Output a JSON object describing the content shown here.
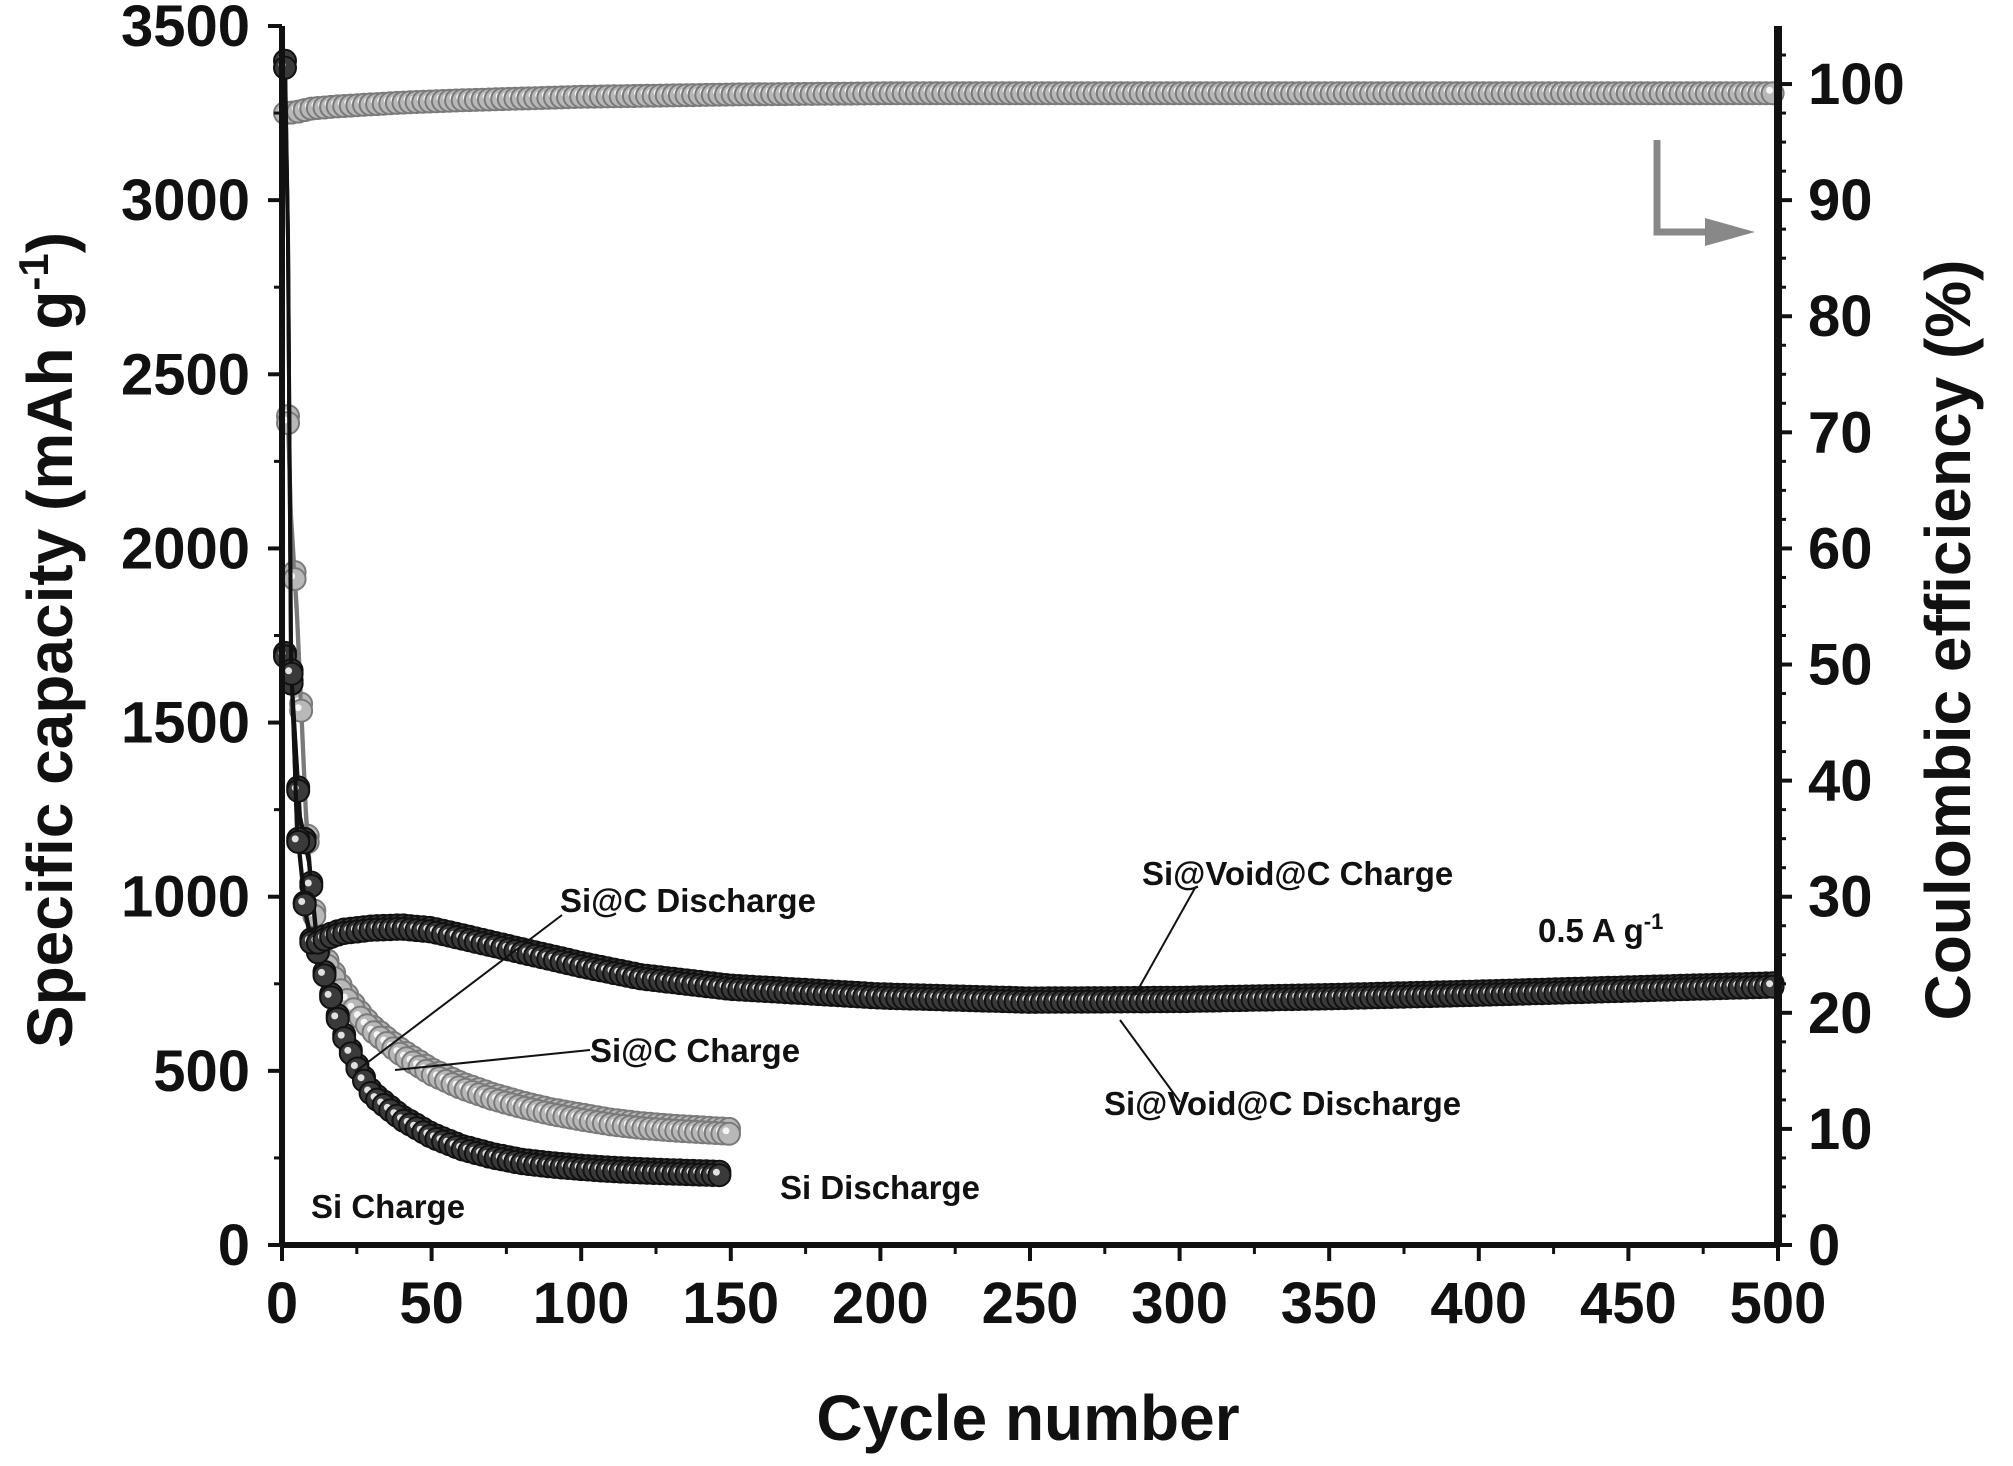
{
  "chart_data": {
    "type": "scatter",
    "xlabel": "Cycle number",
    "ylabel": "Specific capacity (mAh g",
    "ylabel_sup": "-1",
    "ylabel_close": ")",
    "y2label": "Coulombic efficiency (%)",
    "xlim": [
      0,
      500
    ],
    "ylim": [
      0,
      3500
    ],
    "y2lim": [
      0,
      105
    ],
    "x_ticks": [
      "0",
      "50",
      "100",
      "150",
      "200",
      "250",
      "300",
      "350",
      "400",
      "450",
      "500"
    ],
    "y_ticks": [
      "0",
      "500",
      "1000",
      "1500",
      "2000",
      "2500",
      "3000",
      "3500"
    ],
    "y2_ticks": [
      "0",
      "10",
      "20",
      "30",
      "40",
      "50",
      "60",
      "70",
      "80",
      "90",
      "100"
    ],
    "grid": false,
    "series": [
      {
        "name": "Si@Void@C Charge",
        "axis": "left",
        "style": "dark",
        "x": [
          1,
          2,
          3,
          5,
          8,
          10,
          15,
          20,
          30,
          40,
          50,
          60,
          80,
          100,
          120,
          150,
          200,
          250,
          300,
          350,
          400,
          450,
          500
        ],
        "y": [
          3400,
          2900,
          1700,
          1200,
          950,
          870,
          890,
          905,
          915,
          918,
          910,
          890,
          850,
          810,
          775,
          745,
          720,
          708,
          710,
          718,
          728,
          740,
          752
        ]
      },
      {
        "name": "Si@Void@C Discharge",
        "axis": "left",
        "style": "dark",
        "x": [
          1,
          2,
          3,
          5,
          8,
          10,
          15,
          20,
          30,
          40,
          50,
          60,
          80,
          100,
          120,
          150,
          200,
          250,
          300,
          350,
          400,
          450,
          500
        ],
        "y": [
          3380,
          2880,
          1690,
          1190,
          945,
          860,
          880,
          895,
          905,
          908,
          900,
          880,
          840,
          800,
          765,
          735,
          710,
          698,
          700,
          708,
          718,
          730,
          742
        ]
      },
      {
        "name": "Si@C Charge",
        "axis": "left",
        "style": "light",
        "x": [
          2,
          3,
          5,
          8,
          10,
          12,
          15,
          20,
          25,
          30,
          40,
          50,
          60,
          70,
          80,
          90,
          100,
          110,
          120,
          130,
          140,
          150
        ],
        "y": [
          2380,
          2100,
          1820,
          1250,
          1000,
          900,
          820,
          740,
          680,
          630,
          560,
          505,
          465,
          435,
          410,
          390,
          375,
          360,
          350,
          343,
          338,
          333
        ]
      },
      {
        "name": "Si@C Discharge",
        "axis": "left",
        "style": "light",
        "x": [
          2,
          3,
          5,
          8,
          10,
          12,
          15,
          20,
          25,
          30,
          40,
          50,
          60,
          70,
          80,
          90,
          100,
          110,
          120,
          130,
          140,
          150
        ],
        "y": [
          2360,
          2080,
          1800,
          1230,
          985,
          885,
          805,
          725,
          665,
          615,
          545,
          490,
          450,
          420,
          396,
          376,
          360,
          346,
          336,
          329,
          324,
          319
        ]
      },
      {
        "name": "Si Charge",
        "axis": "left",
        "style": "dark",
        "x": [
          1,
          3,
          6,
          9,
          12,
          15,
          20,
          25,
          30,
          40,
          50,
          60,
          70,
          80,
          90,
          100,
          110,
          120,
          130,
          140,
          148
        ],
        "y": [
          1700,
          1650,
          1230,
          1110,
          850,
          760,
          620,
          520,
          440,
          370,
          320,
          285,
          262,
          245,
          235,
          228,
          222,
          218,
          215,
          212,
          210
        ]
      },
      {
        "name": "Si Discharge",
        "axis": "left",
        "style": "dark",
        "x": [
          1,
          3,
          6,
          9,
          12,
          15,
          20,
          25,
          30,
          40,
          50,
          60,
          70,
          80,
          90,
          100,
          110,
          120,
          130,
          140,
          148
        ],
        "y": [
          1690,
          1640,
          1220,
          1100,
          840,
          750,
          610,
          510,
          430,
          360,
          310,
          275,
          252,
          235,
          225,
          218,
          212,
          208,
          205,
          202,
          200
        ]
      },
      {
        "name": "Coulombic efficiency",
        "axis": "right",
        "style": "light",
        "x": [
          1,
          2,
          5,
          10,
          20,
          40,
          60,
          100,
          150,
          200,
          250,
          300,
          350,
          400,
          450,
          500
        ],
        "y": [
          97.5,
          97.5,
          97.6,
          97.9,
          98.1,
          98.4,
          98.6,
          98.9,
          99.1,
          99.2,
          99.2,
          99.2,
          99.2,
          99.2,
          99.2,
          99.2
        ]
      }
    ],
    "annotations": [
      {
        "text": "Si@C Discharge"
      },
      {
        "text": "Si@Void@C Charge"
      },
      {
        "text": "0.5 A g",
        "sup": "-1"
      },
      {
        "text": "Si@C Charge"
      },
      {
        "text": "Si@Void@C Discharge"
      },
      {
        "text": "Si Charge"
      },
      {
        "text": "Si Discharge"
      }
    ],
    "colors": {
      "dark_fill": "#3a3a3a",
      "dark_stroke": "#111111",
      "light_fill": "#b8b8b8",
      "light_stroke": "#7a7a7a",
      "arrow": "#888888",
      "axis": "#111111"
    }
  }
}
